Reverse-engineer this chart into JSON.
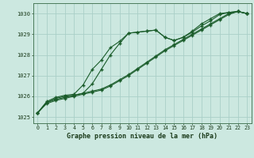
{
  "xlabel": "Graphe pression niveau de la mer (hPa)",
  "xlim": [
    -0.5,
    23.5
  ],
  "ylim": [
    1024.7,
    1030.5
  ],
  "yticks": [
    1025,
    1026,
    1027,
    1028,
    1029,
    1030
  ],
  "xticks": [
    0,
    1,
    2,
    3,
    4,
    5,
    6,
    7,
    8,
    9,
    10,
    11,
    12,
    13,
    14,
    15,
    16,
    17,
    18,
    19,
    20,
    21,
    22,
    23
  ],
  "background_color": "#cce8e0",
  "grid_color": "#aacfc8",
  "line_color": "#1a5c2a",
  "line1_x": [
    0,
    1,
    2,
    3,
    4,
    5,
    6,
    7,
    8,
    9,
    10,
    11,
    12,
    13,
    14,
    15,
    16,
    17,
    18,
    19,
    20,
    21,
    22,
    23
  ],
  "line1": [
    1025.2,
    1025.7,
    1025.85,
    1025.95,
    1026.05,
    1026.15,
    1026.25,
    1026.35,
    1026.55,
    1026.8,
    1027.05,
    1027.35,
    1027.65,
    1027.95,
    1028.25,
    1028.5,
    1028.75,
    1029.0,
    1029.25,
    1029.5,
    1029.75,
    1030.0,
    1030.1,
    1030.0
  ],
  "line2_x": [
    0,
    1,
    2,
    3,
    4,
    5,
    6,
    7,
    8,
    9,
    10,
    11,
    12,
    13,
    14,
    15,
    16,
    17,
    18,
    19,
    20,
    21,
    22,
    23
  ],
  "line2": [
    1025.2,
    1025.65,
    1025.8,
    1025.9,
    1026.0,
    1026.1,
    1026.2,
    1026.3,
    1026.5,
    1026.75,
    1027.0,
    1027.3,
    1027.6,
    1027.9,
    1028.2,
    1028.45,
    1028.7,
    1028.95,
    1029.2,
    1029.45,
    1029.7,
    1029.95,
    1030.1,
    1030.0
  ],
  "line3_x": [
    0,
    1,
    2,
    3,
    4,
    5,
    6,
    7,
    8,
    9,
    10,
    11,
    12,
    13,
    14,
    15,
    16,
    17,
    18,
    19,
    20,
    21,
    22,
    23
  ],
  "line3": [
    1025.2,
    1025.7,
    1025.9,
    1026.0,
    1026.05,
    1026.15,
    1026.6,
    1027.3,
    1028.0,
    1028.55,
    1029.05,
    1029.1,
    1029.15,
    1029.2,
    1028.85,
    1028.7,
    1028.85,
    1029.1,
    1029.4,
    1029.65,
    1029.95,
    1030.05,
    1030.1,
    1030.0
  ],
  "line4_x": [
    0,
    1,
    2,
    3,
    4,
    5,
    6,
    7,
    8,
    9,
    10,
    11,
    12,
    13,
    14,
    15,
    16,
    17,
    18,
    19,
    20,
    21,
    22,
    23
  ],
  "line4": [
    1025.2,
    1025.75,
    1025.95,
    1026.05,
    1026.1,
    1026.55,
    1027.3,
    1027.75,
    1028.35,
    1028.65,
    1029.05,
    1029.1,
    1029.15,
    1029.2,
    1028.85,
    1028.7,
    1028.85,
    1029.15,
    1029.5,
    1029.75,
    1030.0,
    1030.05,
    1030.1,
    1030.0
  ]
}
